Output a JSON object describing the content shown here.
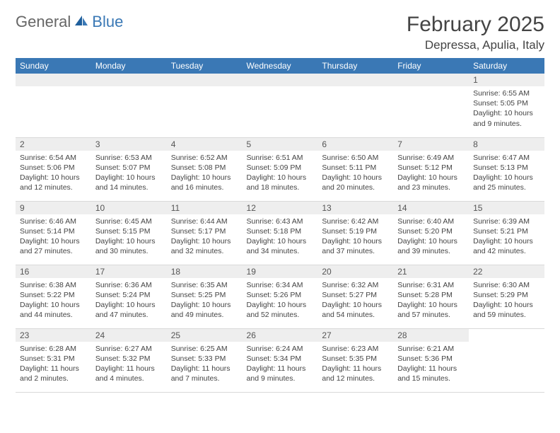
{
  "brand": {
    "part1": "General",
    "part2": "Blue"
  },
  "title": "February 2025",
  "location": "Depressa, Apulia, Italy",
  "colors": {
    "header_bg": "#3a78b5",
    "header_fg": "#ffffff",
    "daynum_bg": "#eeeeee",
    "text": "#444444",
    "border": "#d9d9d9"
  },
  "layout": {
    "columns": 7,
    "rows": 5,
    "first_day_index": 6
  },
  "weekdays": [
    "Sunday",
    "Monday",
    "Tuesday",
    "Wednesday",
    "Thursday",
    "Friday",
    "Saturday"
  ],
  "days": [
    {
      "n": 1,
      "sunrise": "6:55 AM",
      "sunset": "5:05 PM",
      "daylight": "10 hours and 9 minutes."
    },
    {
      "n": 2,
      "sunrise": "6:54 AM",
      "sunset": "5:06 PM",
      "daylight": "10 hours and 12 minutes."
    },
    {
      "n": 3,
      "sunrise": "6:53 AM",
      "sunset": "5:07 PM",
      "daylight": "10 hours and 14 minutes."
    },
    {
      "n": 4,
      "sunrise": "6:52 AM",
      "sunset": "5:08 PM",
      "daylight": "10 hours and 16 minutes."
    },
    {
      "n": 5,
      "sunrise": "6:51 AM",
      "sunset": "5:09 PM",
      "daylight": "10 hours and 18 minutes."
    },
    {
      "n": 6,
      "sunrise": "6:50 AM",
      "sunset": "5:11 PM",
      "daylight": "10 hours and 20 minutes."
    },
    {
      "n": 7,
      "sunrise": "6:49 AM",
      "sunset": "5:12 PM",
      "daylight": "10 hours and 23 minutes."
    },
    {
      "n": 8,
      "sunrise": "6:47 AM",
      "sunset": "5:13 PM",
      "daylight": "10 hours and 25 minutes."
    },
    {
      "n": 9,
      "sunrise": "6:46 AM",
      "sunset": "5:14 PM",
      "daylight": "10 hours and 27 minutes."
    },
    {
      "n": 10,
      "sunrise": "6:45 AM",
      "sunset": "5:15 PM",
      "daylight": "10 hours and 30 minutes."
    },
    {
      "n": 11,
      "sunrise": "6:44 AM",
      "sunset": "5:17 PM",
      "daylight": "10 hours and 32 minutes."
    },
    {
      "n": 12,
      "sunrise": "6:43 AM",
      "sunset": "5:18 PM",
      "daylight": "10 hours and 34 minutes."
    },
    {
      "n": 13,
      "sunrise": "6:42 AM",
      "sunset": "5:19 PM",
      "daylight": "10 hours and 37 minutes."
    },
    {
      "n": 14,
      "sunrise": "6:40 AM",
      "sunset": "5:20 PM",
      "daylight": "10 hours and 39 minutes."
    },
    {
      "n": 15,
      "sunrise": "6:39 AM",
      "sunset": "5:21 PM",
      "daylight": "10 hours and 42 minutes."
    },
    {
      "n": 16,
      "sunrise": "6:38 AM",
      "sunset": "5:22 PM",
      "daylight": "10 hours and 44 minutes."
    },
    {
      "n": 17,
      "sunrise": "6:36 AM",
      "sunset": "5:24 PM",
      "daylight": "10 hours and 47 minutes."
    },
    {
      "n": 18,
      "sunrise": "6:35 AM",
      "sunset": "5:25 PM",
      "daylight": "10 hours and 49 minutes."
    },
    {
      "n": 19,
      "sunrise": "6:34 AM",
      "sunset": "5:26 PM",
      "daylight": "10 hours and 52 minutes."
    },
    {
      "n": 20,
      "sunrise": "6:32 AM",
      "sunset": "5:27 PM",
      "daylight": "10 hours and 54 minutes."
    },
    {
      "n": 21,
      "sunrise": "6:31 AM",
      "sunset": "5:28 PM",
      "daylight": "10 hours and 57 minutes."
    },
    {
      "n": 22,
      "sunrise": "6:30 AM",
      "sunset": "5:29 PM",
      "daylight": "10 hours and 59 minutes."
    },
    {
      "n": 23,
      "sunrise": "6:28 AM",
      "sunset": "5:31 PM",
      "daylight": "11 hours and 2 minutes."
    },
    {
      "n": 24,
      "sunrise": "6:27 AM",
      "sunset": "5:32 PM",
      "daylight": "11 hours and 4 minutes."
    },
    {
      "n": 25,
      "sunrise": "6:25 AM",
      "sunset": "5:33 PM",
      "daylight": "11 hours and 7 minutes."
    },
    {
      "n": 26,
      "sunrise": "6:24 AM",
      "sunset": "5:34 PM",
      "daylight": "11 hours and 9 minutes."
    },
    {
      "n": 27,
      "sunrise": "6:23 AM",
      "sunset": "5:35 PM",
      "daylight": "11 hours and 12 minutes."
    },
    {
      "n": 28,
      "sunrise": "6:21 AM",
      "sunset": "5:36 PM",
      "daylight": "11 hours and 15 minutes."
    }
  ],
  "labels": {
    "sunrise": "Sunrise:",
    "sunset": "Sunset:",
    "daylight": "Daylight:"
  }
}
